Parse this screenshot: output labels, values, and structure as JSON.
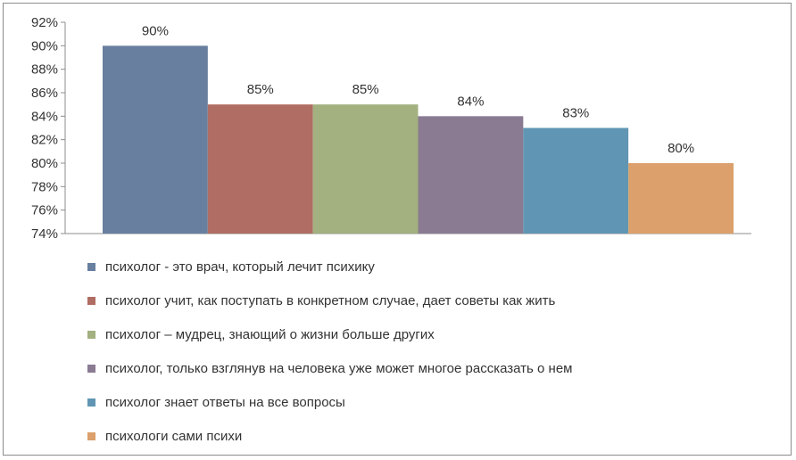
{
  "chart_data": {
    "type": "bar",
    "title": "",
    "xlabel": "",
    "ylabel": "",
    "ylim": [
      74,
      92
    ],
    "y_ticks": [
      "74%",
      "76%",
      "78%",
      "80%",
      "82%",
      "84%",
      "86%",
      "88%",
      "90%",
      "92%"
    ],
    "y_tick_values": [
      74,
      76,
      78,
      80,
      82,
      84,
      86,
      88,
      90,
      92
    ],
    "grid": false,
    "legend_position": "bottom",
    "series": [
      {
        "name": "психолог - это врач, который лечит психику",
        "value": 90,
        "label": "90%",
        "color": "#687f9f"
      },
      {
        "name": "психолог учит, как поступать в конкретном случае, дает советы как жить",
        "value": 85,
        "label": "85%",
        "color": "#b06d63"
      },
      {
        "name": "психолог – мудрец, знающий о жизни больше других",
        "value": 85,
        "label": "85%",
        "color": "#a3b07f"
      },
      {
        "name": "психолог, только взглянув на человека уже может многое рассказать о нем",
        "value": 84,
        "label": "84%",
        "color": "#8a7b92"
      },
      {
        "name": "психолог знает ответы на все вопросы",
        "value": 83,
        "label": "83%",
        "color": "#6096b3"
      },
      {
        "name": "психологи сами психи",
        "value": 80,
        "label": "80%",
        "color": "#dba06b"
      }
    ]
  }
}
